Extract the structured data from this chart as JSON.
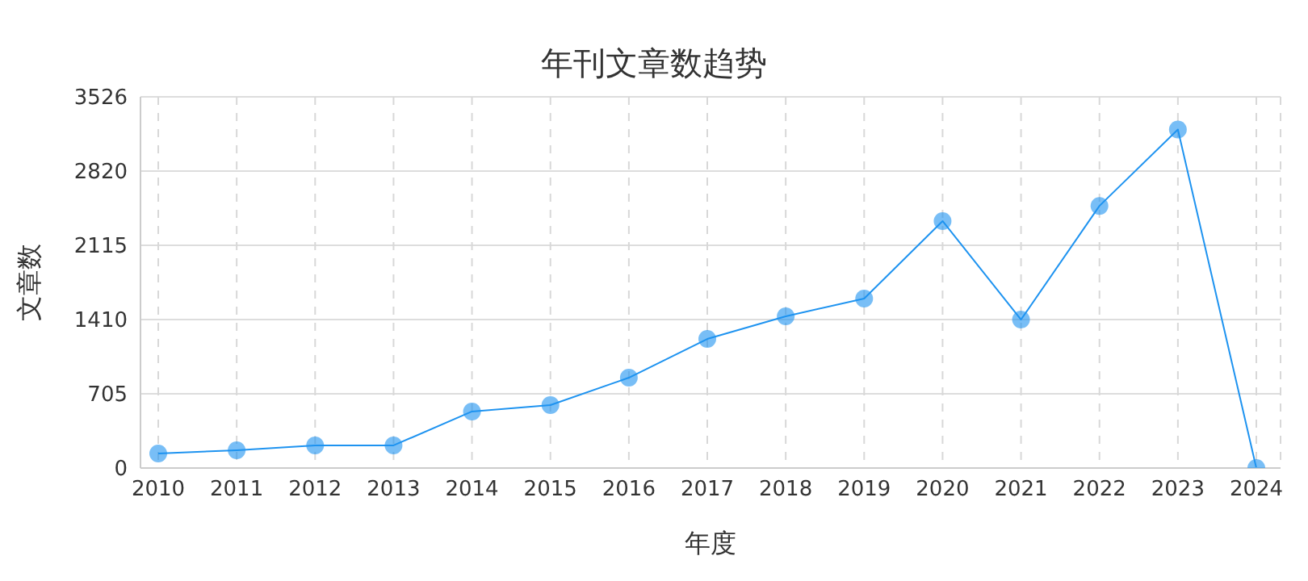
{
  "chart_data": {
    "type": "line",
    "title": "年刊文章数趋势",
    "xlabel": "年度",
    "ylabel": "文章数",
    "categories": [
      "2010",
      "2011",
      "2012",
      "2013",
      "2014",
      "2015",
      "2016",
      "2017",
      "2018",
      "2019",
      "2020",
      "2021",
      "2022",
      "2023",
      "2024"
    ],
    "series": [
      {
        "color": "#1e93f0",
        "values": [
          138,
          169,
          215,
          215,
          537,
          598,
          858,
          1226,
          1441,
          1610,
          2346,
          1410,
          2490,
          3215,
          0
        ]
      }
    ],
    "ylim": [
      0,
      3526
    ],
    "yticks": [
      0,
      705,
      1410,
      2115,
      2820,
      3526
    ],
    "grid": true,
    "marker": "circle",
    "line_style": "solid"
  }
}
